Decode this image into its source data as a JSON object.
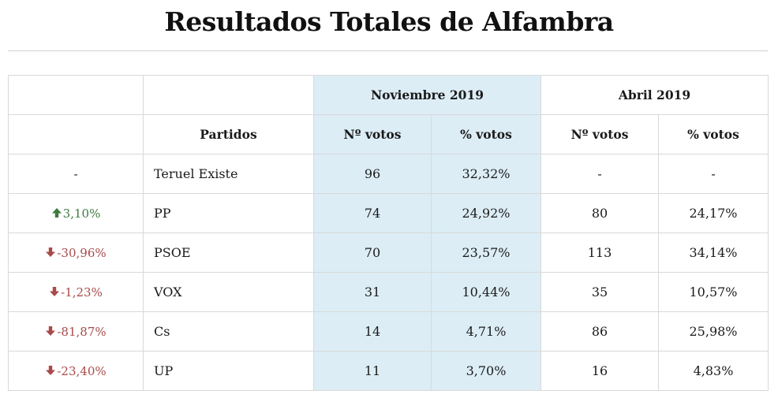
{
  "title": "Resultados Totales de Alfambra",
  "header": {
    "period_1": "Noviembre 2019",
    "period_2": "Abril 2019",
    "col_party": "Partidos",
    "col_votes": "Nº votos",
    "col_pct": "% votos"
  },
  "colors": {
    "highlight": "#dcedf6",
    "up": "#3f7a3f",
    "down": "#a84a4a"
  },
  "rows": [
    {
      "change": "-",
      "trend": "none",
      "party": "Teruel Existe",
      "nov_votes": "96",
      "nov_pct": "32,32%",
      "abr_votes": "-",
      "abr_pct": "-"
    },
    {
      "change": "3,10%",
      "trend": "up",
      "party": "PP",
      "nov_votes": "74",
      "nov_pct": "24,92%",
      "abr_votes": "80",
      "abr_pct": "24,17%"
    },
    {
      "change": "-30,96%",
      "trend": "down",
      "party": "PSOE",
      "nov_votes": "70",
      "nov_pct": "23,57%",
      "abr_votes": "113",
      "abr_pct": "34,14%"
    },
    {
      "change": "-1,23%",
      "trend": "down",
      "party": "VOX",
      "nov_votes": "31",
      "nov_pct": "10,44%",
      "abr_votes": "35",
      "abr_pct": "10,57%"
    },
    {
      "change": "-81,87%",
      "trend": "down",
      "party": "Cs",
      "nov_votes": "14",
      "nov_pct": "4,71%",
      "abr_votes": "86",
      "abr_pct": "25,98%"
    },
    {
      "change": "-23,40%",
      "trend": "down",
      "party": "UP",
      "nov_votes": "11",
      "nov_pct": "3,70%",
      "abr_votes": "16",
      "abr_pct": "4,83%"
    }
  ]
}
